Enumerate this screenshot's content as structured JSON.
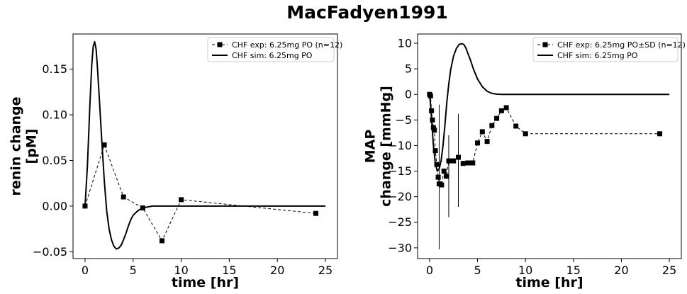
{
  "figure": {
    "title": "MacFadyen1991"
  },
  "chart_data": [
    {
      "type": "line",
      "xlabel": "time [hr]",
      "ylabel": [
        "renin change",
        "[pM]"
      ],
      "xlim": [
        -1.25,
        26.25
      ],
      "ylim": [
        -0.0575,
        0.1885
      ],
      "xticks": [
        0,
        5,
        10,
        15,
        20,
        25
      ],
      "xtick_labels": [
        "0",
        "5",
        "10",
        "15",
        "20",
        "25"
      ],
      "yticks": [
        -0.05,
        0,
        0.05,
        0.1,
        0.15
      ],
      "ytick_labels": [
        "−0.05",
        "0.00",
        "0.05",
        "0.10",
        "0.15"
      ],
      "grid": false,
      "legend_position": "top-right",
      "series": [
        {
          "name": "CHF exp: 6.25mg PO (n=12)",
          "style": "dashed-square",
          "x": [
            0,
            2,
            4,
            6,
            8,
            10,
            24
          ],
          "y": [
            0.0,
            0.067,
            0.01,
            -0.002,
            -0.038,
            0.007,
            -0.008
          ],
          "yerr": []
        },
        {
          "name": "CHF sim: 6.25mg PO",
          "style": "solid",
          "x": [
            0,
            0.25,
            0.5,
            0.7,
            0.85,
            1.0,
            1.15,
            1.3,
            1.5,
            1.75,
            2.0,
            2.25,
            2.5,
            2.75,
            3.0,
            3.25,
            3.5,
            3.75,
            4.0,
            4.25,
            4.5,
            4.75,
            5.0,
            5.5,
            6.0,
            6.5,
            7.0,
            8.0,
            9.0,
            10.0,
            12.0,
            15.0,
            20.0,
            25.0
          ],
          "y": [
            0.0,
            0.045,
            0.11,
            0.155,
            0.175,
            0.18,
            0.172,
            0.15,
            0.115,
            0.07,
            0.028,
            -0.005,
            -0.025,
            -0.037,
            -0.044,
            -0.047,
            -0.046,
            -0.043,
            -0.037,
            -0.03,
            -0.022,
            -0.015,
            -0.01,
            -0.005,
            -0.002,
            -0.001,
            0.0,
            0.0,
            0.0,
            0.0,
            0.0,
            0.0,
            0.0,
            0.0
          ]
        }
      ]
    },
    {
      "type": "line",
      "xlabel": "time [hr]",
      "ylabel": [
        "MAP",
        "change [mmHg]"
      ],
      "xlim": [
        -1.25,
        26.25
      ],
      "ylim": [
        -32.1,
        11.8
      ],
      "xticks": [
        0,
        5,
        10,
        15,
        20,
        25
      ],
      "xtick_labels": [
        "0",
        "5",
        "10",
        "15",
        "20",
        "25"
      ],
      "yticks": [
        -30,
        -25,
        -20,
        -15,
        -10,
        -5,
        0,
        5,
        10
      ],
      "ytick_labels": [
        "−30",
        "−25",
        "−20",
        "−15",
        "−10",
        "−5",
        "0",
        "5",
        "10"
      ],
      "grid": false,
      "legend_position": "top-right",
      "series": [
        {
          "name": "CHF exp: 6.25mg PO±SD (n=12)",
          "style": "dashed-square",
          "x": [
            0,
            0.1,
            0.2,
            0.3,
            0.4,
            0.5,
            0.6,
            0.75,
            0.9,
            1.0,
            1.25,
            1.5,
            1.75,
            2.0,
            2.5,
            3.0,
            3.5,
            4.0,
            4.5,
            5.0,
            5.5,
            6.0,
            6.5,
            7.0,
            7.5,
            8.0,
            9.0,
            10.0,
            24.0
          ],
          "y": [
            0.0,
            -0.3,
            -3.2,
            -5.0,
            -6.5,
            -7.0,
            -11.0,
            -13.7,
            -16.2,
            -17.5,
            -17.7,
            -15.0,
            -16.0,
            -13.0,
            -13.0,
            -12.3,
            -13.5,
            -13.4,
            -13.4,
            -9.5,
            -7.3,
            -9.2,
            -6.1,
            -4.7,
            -3.2,
            -2.6,
            -6.2,
            -7.7,
            -7.7
          ],
          "yerr": [
            {
              "x": 1.0,
              "low": -30.3,
              "high": -2.0
            },
            {
              "x": 2.0,
              "low": -24.0,
              "high": -8.0
            },
            {
              "x": 3.0,
              "low": -22.0,
              "high": -3.8
            }
          ]
        },
        {
          "name": "CHF sim: 6.25mg PO",
          "style": "solid",
          "x": [
            0,
            0.1,
            0.25,
            0.4,
            0.6,
            0.8,
            1.0,
            1.2,
            1.4,
            1.6,
            1.8,
            2.0,
            2.2,
            2.5,
            2.8,
            3.1,
            3.4,
            3.6,
            3.8,
            4.0,
            4.3,
            4.6,
            5.0,
            5.5,
            6.0,
            6.5,
            7.0,
            7.5,
            8.0,
            9.0,
            10.0,
            12.0,
            15.0,
            20.0,
            25.0
          ],
          "y": [
            0.0,
            -2.0,
            -6.0,
            -10.0,
            -13.5,
            -15.0,
            -14.6,
            -13.0,
            -10.0,
            -6.0,
            -1.5,
            2.0,
            4.8,
            7.5,
            9.0,
            9.8,
            9.9,
            9.7,
            9.0,
            8.0,
            6.5,
            4.8,
            3.0,
            1.5,
            0.6,
            0.2,
            0.05,
            0.0,
            0.0,
            0.0,
            0.0,
            0.0,
            0.0,
            0.0,
            0.0
          ]
        }
      ]
    }
  ]
}
